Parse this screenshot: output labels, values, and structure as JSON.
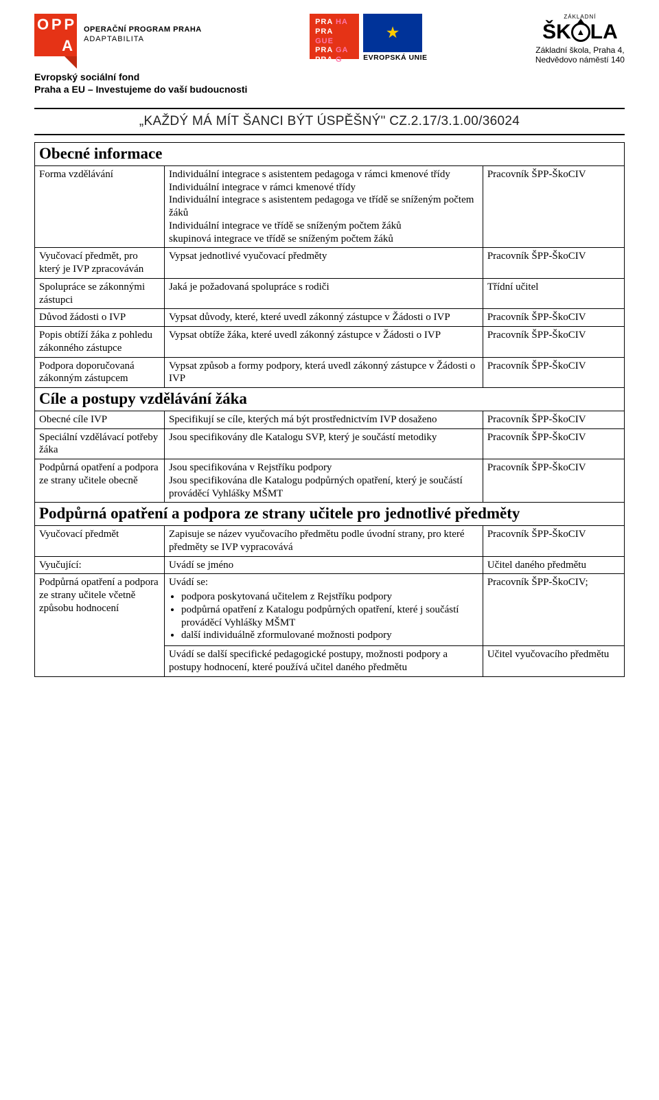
{
  "header": {
    "oppa": {
      "line1": "OPERAČNÍ PROGRAM PRAHA",
      "line2": "ADAPTABILITA",
      "letters": [
        "O",
        "P",
        "P"
      ],
      "letter2": "A"
    },
    "prague": {
      "r1a": "PRA",
      "r1b": "HA",
      "r2a": "PRA",
      "r2b": "GUE",
      "r3a": "PRA",
      "r3b": "GA",
      "r4a": "PRA",
      "r4b": "G"
    },
    "eu_label": "EVROPSKÁ UNIE",
    "skola": {
      "arc": "ZÁKLADNÍ",
      "word_pre": "ŠK",
      "word_post": "LA",
      "line1": "Základní škola, Praha 4,",
      "line2": "Nedvědovo náměstí 140"
    },
    "esf1": "Evropský sociální fond",
    "esf2": "Praha a EU – Investujeme do vaší budoucnosti",
    "motto": "„KAŽDÝ MÁ MÍT ŠANCI BÝT ÚSPĚŠNÝ\" CZ.2.17/3.1.00/36024"
  },
  "sections": {
    "obecne": "Obecné informace",
    "cile": "Cíle a postupy vzdělávání žáka",
    "podpurna": "Podpůrná opatření a podpora ze strany učitele pro jednotlivé předměty"
  },
  "rows": {
    "r1": {
      "c1": "Forma vzdělávání",
      "c2": "Individuální integrace s asistentem pedagoga v rámci kmenové třídy\nIndividuální integrace v rámci kmenové třídy\nIndividuální integrace s asistentem pedagoga ve třídě se sníženým počtem žáků\nIndividuální integrace ve třídě se sníženým počtem žáků\nskupinová integrace ve třídě se sníženým počtem žáků",
      "c3": "Pracovník ŠPP-ŠkoCIV"
    },
    "r2": {
      "c1": "Vyučovací předmět, pro který je IVP zpracováván",
      "c2": "Vypsat jednotlivé vyučovací předměty",
      "c3": "Pracovník ŠPP-ŠkoCIV"
    },
    "r3": {
      "c1": "Spolupráce se zákonnými zástupci",
      "c2": "Jaká je požadovaná spolupráce s rodiči",
      "c3": "Třídní učitel"
    },
    "r4": {
      "c1": "Důvod žádosti o IVP",
      "c2": "Vypsat důvody, které, které uvedl zákonný zástupce v Žádosti o IVP",
      "c3": "Pracovník ŠPP-ŠkoCIV"
    },
    "r5": {
      "c1": "Popis obtíží žáka z pohledu zákonného zástupce",
      "c2": "Vypsat obtíže žáka, které uvedl zákonný zástupce v Žádosti o IVP",
      "c3": "Pracovník ŠPP-ŠkoCIV"
    },
    "r6": {
      "c1": "Podpora doporučovaná zákonným zástupcem",
      "c2": "Vypsat způsob a formy podpory, která uvedl zákonný zástupce v Žádosti o IVP",
      "c3": "Pracovník ŠPP-ŠkoCIV"
    },
    "r7": {
      "c1": "Obecné cíle IVP",
      "c2": "Specifikují se cíle, kterých má být prostřednictvím IVP dosaženo",
      "c3": "Pracovník ŠPP-ŠkoCIV"
    },
    "r8": {
      "c1": "Speciální vzdělávací potřeby žáka",
      "c2": "Jsou specifikovány dle Katalogu SVP, který je součástí metodiky",
      "c3": "Pracovník ŠPP-ŠkoCIV"
    },
    "r9": {
      "c1": "Podpůrná opatření a podpora ze strany učitele obecně",
      "c2": "Jsou specifikována v Rejstříku podpory\nJsou specifikována dle Katalogu podpůrných opatření, který je součástí prováděcí Vyhlášky MŠMT",
      "c3": "Pracovník ŠPP-ŠkoCIV"
    },
    "r10": {
      "c1": "Vyučovací předmět",
      "c2": "Zapisuje se název vyučovacího předmětu podle úvodní strany, pro které předměty se IVP vypracovává",
      "c3": "Pracovník ŠPP-ŠkoCIV"
    },
    "r11": {
      "c1": "Vyučující:",
      "c2": "Uvádí se jméno",
      "c3": "Učitel daného předmětu"
    },
    "r12": {
      "c1": "Podpůrná opatření a podpora ze strany učitele včetně způsobu hodnocení",
      "c2a_lead": "Uvádí se:",
      "c2a_b1": "podpora poskytovaná učitelem z Rejstříku podpory",
      "c2a_b2": "podpůrná opatření z Katalogu podpůrných opatření, které j součástí prováděcí Vyhlášky MŠMT",
      "c2a_b3": "další individuálně zformulované možnosti podpory",
      "c2b": "Uvádí se další specifické pedagogické postupy, možnosti podpory a postupy hodnocení, které používá učitel daného předmětu",
      "c3a": "Pracovník ŠPP-ŠkoCIV;",
      "c3b": "Učitel vyučovacího předmětu"
    }
  },
  "colors": {
    "red": "#e53316",
    "blue": "#003399",
    "gold": "#ffcc00",
    "text": "#000000",
    "bg": "#ffffff"
  }
}
